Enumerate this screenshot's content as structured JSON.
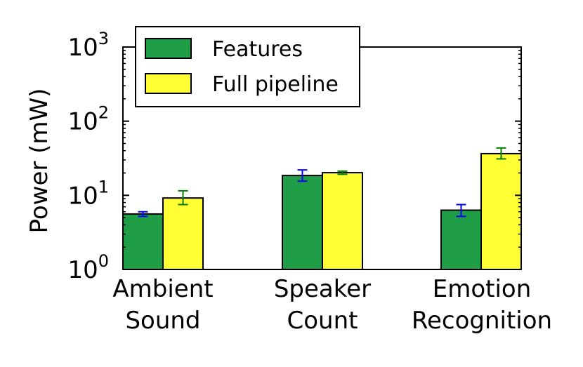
{
  "chart_data": {
    "type": "bar",
    "ylabel": "Power (mW)",
    "yscale": "log",
    "ylim": [
      1,
      1000
    ],
    "yticks": [
      {
        "base": "10",
        "exp": "0",
        "value": 1
      },
      {
        "base": "10",
        "exp": "1",
        "value": 10
      },
      {
        "base": "10",
        "exp": "2",
        "value": 100
      },
      {
        "base": "10",
        "exp": "3",
        "value": 1000
      }
    ],
    "categories": [
      {
        "lines": [
          "Ambient",
          "Sound"
        ]
      },
      {
        "lines": [
          "Speaker",
          "Count"
        ]
      },
      {
        "lines": [
          "Emotion",
          "Recognition"
        ]
      }
    ],
    "series": [
      {
        "name": "Features",
        "color": "#1f9e47",
        "error_color": "#0000ff",
        "values": [
          5.6,
          18.5,
          6.3
        ],
        "err_low": [
          5.2,
          15.5,
          5.2
        ],
        "err_high": [
          6.0,
          22.0,
          7.5
        ]
      },
      {
        "name": "Full pipeline",
        "color": "#ffff33",
        "error_color": "#008000",
        "values": [
          9.2,
          20.2,
          36.5
        ],
        "err_low": [
          7.5,
          19.2,
          31.0
        ],
        "err_high": [
          11.5,
          21.2,
          43.5
        ]
      }
    ],
    "legend": "top-left",
    "grid": false
  }
}
